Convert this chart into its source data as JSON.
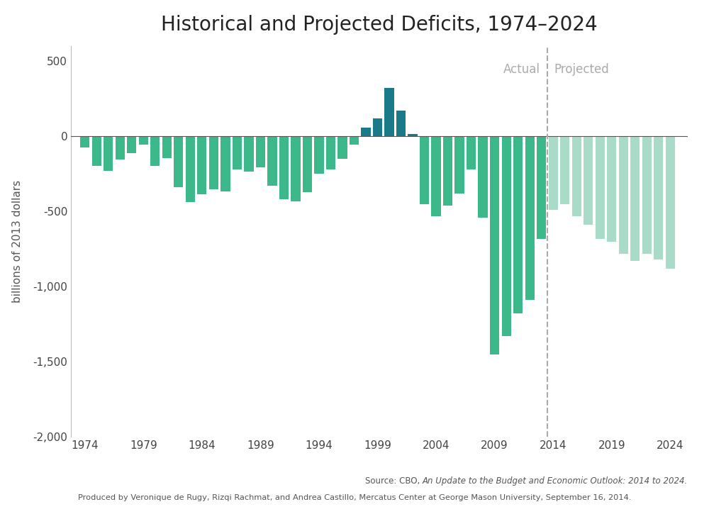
{
  "title": "Historical and Projected Deficits, 1974–2024",
  "ylabel": "billions of 2013 dollars",
  "source_prefix": "Source: CBO, ",
  "source_italic": "An Update to the Budget and Economic Outlook: 2014 to 2024.",
  "source_line2": "Produced by Veronique de Rugy, Rizqi Rachmat, and Andrea Castillo, Mercatus Center at George Mason University, September 16, 2014.",
  "years": [
    1974,
    1975,
    1976,
    1977,
    1978,
    1979,
    1980,
    1981,
    1982,
    1983,
    1984,
    1985,
    1986,
    1987,
    1988,
    1989,
    1990,
    1991,
    1992,
    1993,
    1994,
    1995,
    1996,
    1997,
    1998,
    1999,
    2000,
    2001,
    2002,
    2003,
    2004,
    2005,
    2006,
    2007,
    2008,
    2009,
    2010,
    2011,
    2012,
    2013,
    2014,
    2015,
    2016,
    2017,
    2018,
    2019,
    2020,
    2021,
    2022,
    2023,
    2024
  ],
  "values": [
    -75,
    -195,
    -230,
    -155,
    -110,
    -55,
    -195,
    -145,
    -340,
    -435,
    -385,
    -350,
    -365,
    -220,
    -235,
    -205,
    -330,
    -420,
    -430,
    -370,
    -250,
    -220,
    -150,
    -55,
    60,
    120,
    325,
    170,
    15,
    -450,
    -530,
    -460,
    -380,
    -220,
    -540,
    -1450,
    -1330,
    -1180,
    -1090,
    -680,
    -490,
    -450,
    -530,
    -590,
    -680,
    -700,
    -780,
    -830,
    -780,
    -820,
    -880
  ],
  "actual_cutoff_year": 2013,
  "projected_start_year": 2014,
  "color_actual": "#3db88a",
  "color_surplus": "#1a7a8a",
  "color_projected": "#a8dcc8",
  "color_divider": "#aaaaaa",
  "ylim": [
    -2000,
    600
  ],
  "yticks": [
    500,
    0,
    -500,
    -1000,
    -1500,
    -2000
  ],
  "xticks": [
    1974,
    1979,
    1984,
    1989,
    1994,
    1999,
    2004,
    2009,
    2014,
    2019,
    2024
  ],
  "actual_label": "Actual",
  "projected_label": "Projected",
  "background_color": "#ffffff",
  "title_fontsize": 20,
  "label_fontsize": 11,
  "tick_fontsize": 11,
  "annotation_fontsize": 12
}
